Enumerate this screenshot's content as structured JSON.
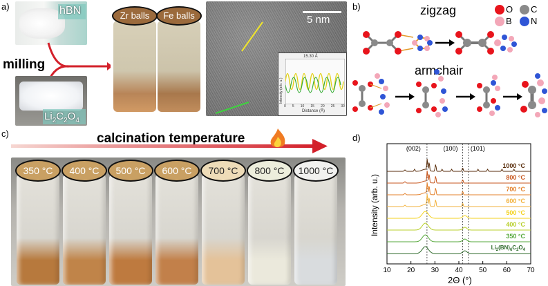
{
  "panel_a": {
    "letter": "a)",
    "hbn_label": "hBN",
    "li_label": "Li",
    "li_sub1": "2",
    "li_c": "C",
    "li_sub2": "2",
    "li_o": "O",
    "li_sub3": "4",
    "milling_label": "milling",
    "zr_label": "Zr balls",
    "fe_label": "Fe balls",
    "tem_scale": "5 nm",
    "inset_measure": "15.30 Å",
    "inset_xlabel": "Distance (Å)",
    "inset_ylabel": "Intensity (arb. u.)",
    "inset_xticks": [
      "0",
      "5",
      "10",
      "15",
      "20",
      "25",
      "30"
    ]
  },
  "panel_b": {
    "letter": "b)",
    "zigzag": "zigzag",
    "armchair": "armchair",
    "legend": [
      {
        "label": "O",
        "color": "#e8141c"
      },
      {
        "label": "C",
        "color": "#8a8a8a"
      },
      {
        "label": "B",
        "color": "#f3a7b8"
      },
      {
        "label": "N",
        "color": "#2f55d6"
      }
    ]
  },
  "panel_c": {
    "letter": "c)",
    "title": "calcination temperature",
    "temps": [
      {
        "label": "350 °C",
        "bg": "#c9a063",
        "powder": "#b7793d"
      },
      {
        "label": "400 °C",
        "bg": "#c9a063",
        "powder": "#c08449"
      },
      {
        "label": "500 °C",
        "bg": "#c9a063",
        "powder": "#be7a3f"
      },
      {
        "label": "600 °C",
        "bg": "#c9a063",
        "powder": "#c2804a"
      },
      {
        "label": "700 °C",
        "bg": "#eedcb8",
        "powder": "#e4c299"
      },
      {
        "label": "800 °C",
        "bg": "#edeedc",
        "powder": "#ebe9dc"
      },
      {
        "label": "1000 °C",
        "bg": "#f1f1ef",
        "powder": "#d9dcde"
      }
    ]
  },
  "panel_d": {
    "letter": "d)",
    "chart_data": {
      "type": "line",
      "xlabel": "2Θ (°)",
      "ylabel": "Intensity (arb. u.)",
      "xlim": [
        10,
        70
      ],
      "xticks": [
        "10",
        "20",
        "30",
        "40",
        "50",
        "60",
        "70"
      ],
      "peak_labels": [
        "(002)",
        "(100)",
        "(101)"
      ],
      "peak_positions": [
        26.7,
        41.6,
        44.0
      ],
      "series": [
        {
          "name": "1000 °C",
          "color": "#5a2e0c"
        },
        {
          "name": "800 °C",
          "color": "#c7561d"
        },
        {
          "name": "700 °C",
          "color": "#e3802b"
        },
        {
          "name": "600 °C",
          "color": "#f2b23e"
        },
        {
          "name": "500 °C",
          "color": "#f3d21c"
        },
        {
          "name": "400 °C",
          "color": "#b8cf2b"
        },
        {
          "name": "350 °C",
          "color": "#56a83c"
        },
        {
          "name": "Li2(BN)6C2O4",
          "color": "#2e6a2a"
        }
      ],
      "last_series_label": {
        "a": "Li",
        "s1": "2",
        "b": "(BN)",
        "s2": "6",
        "c": "C",
        "s3": "2",
        "d": "O",
        "s4": "4"
      }
    }
  }
}
